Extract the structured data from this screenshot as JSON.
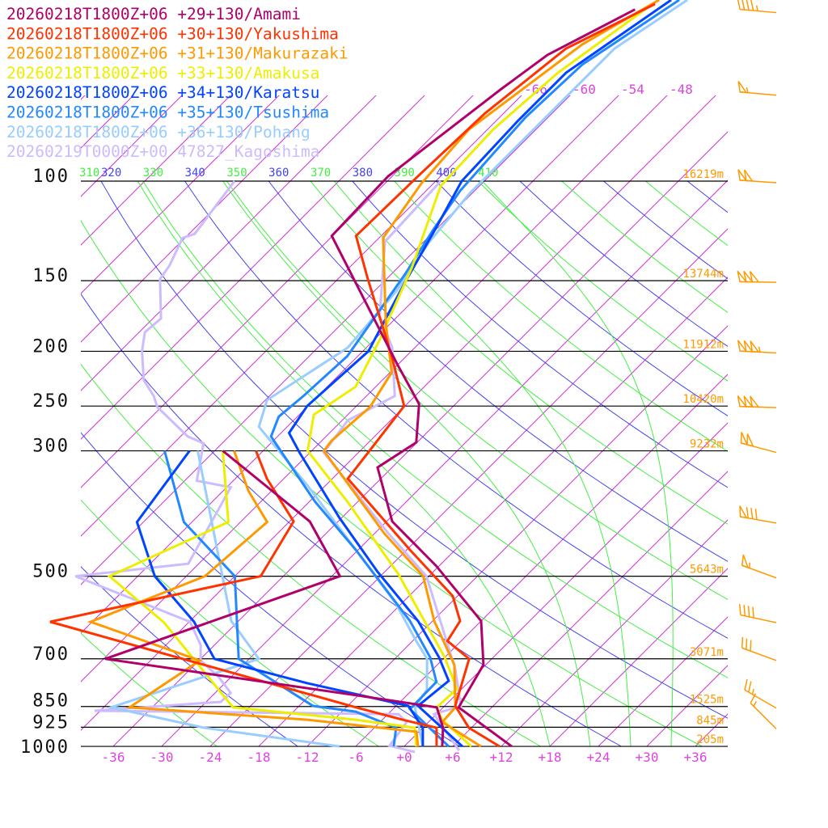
{
  "chart_data": {
    "type": "line",
    "subtype": "skew-t log-p",
    "xlabel": "Temperature (°C)",
    "ylabel": "Pressure (hPa)",
    "pressure_levels": [
      100,
      150,
      200,
      250,
      300,
      500,
      700,
      850,
      925,
      1000
    ],
    "pressure_labels": [
      "100",
      "150",
      "200",
      "250",
      "300",
      "500",
      "700",
      "850",
      "925",
      "1000"
    ],
    "height_labels": [
      "16219m",
      "13744m",
      "11912m",
      "10420m",
      "9232m",
      "5643m",
      "3071m",
      "1525m",
      "845m",
      "205m"
    ],
    "temperature_ticks": [
      -36,
      -30,
      -24,
      -18,
      -12,
      -6,
      0,
      6,
      12,
      18,
      24,
      30,
      36
    ],
    "temperature_tick_labels": [
      "-36",
      "-30",
      "-24",
      "-18",
      "-12",
      "-6",
      "+0",
      "+6",
      "+12",
      "+18",
      "+24",
      "+30",
      "+36"
    ],
    "top_isotherm_ticks": [
      -66,
      -60,
      -54,
      -48
    ],
    "top_isotherm_labels": [
      "-66",
      "-60",
      "-54",
      "-48"
    ],
    "theta_ticks": [
      310,
      320,
      330,
      340,
      350,
      360,
      370,
      380,
      390,
      400,
      410
    ],
    "theta_labels": [
      "310",
      "320",
      "330",
      "340",
      "350",
      "360",
      "370",
      "380",
      "390",
      "400",
      "410"
    ],
    "xlim_at_1000hPa": [
      -40,
      40
    ],
    "ylim": [
      1000,
      48
    ],
    "colors": {
      "isotherm": "#cc33cc",
      "dry_adiabat_a": "#4444ee",
      "dry_adiabat_b": "#44ee44",
      "moist_adiabat": "#44ee44",
      "isobar": "#000000",
      "height_label": "#ff9900",
      "tick_label": "#dd44dd",
      "wind_barb": "#ff9900"
    },
    "moist_adiabat_start_T_1000hPa": [
      18,
      23,
      28,
      33
    ],
    "series": [
      {
        "name": "Amami",
        "label": "20260218T1800Z+06 +29+130/Amami",
        "color": "#b0006a",
        "temperature": [
          [
            1000,
            13.3
          ],
          [
            853,
            1.9
          ],
          [
            717,
            -0.3
          ],
          [
            600,
            -6.0
          ],
          [
            480,
            -18.3
          ],
          [
            400,
            -29.3
          ],
          [
            321,
            -37.8
          ],
          [
            290,
            -36.1
          ],
          [
            248,
            -40.5
          ],
          [
            210,
            -48.3
          ],
          [
            125,
            -72.1
          ],
          [
            98,
            -72.5
          ],
          [
            68.7,
            -69.3
          ],
          [
            59.8,
            -67.8
          ],
          [
            49.7,
            -62.6
          ]
        ],
        "dewpoint": [
          [
            1000,
            4.7
          ],
          [
            927,
            2.5
          ],
          [
            853,
            -0.8
          ],
          [
            812,
            -12.3
          ],
          [
            700,
            -47.8
          ],
          [
            500,
            -29.0
          ],
          [
            400,
            -39.5
          ],
          [
            300,
            -59.0
          ]
        ]
      },
      {
        "name": "Yakushima",
        "label": "20260218T1800Z+06 +30+130/Yakushima",
        "color": "#ff3300",
        "temperature": [
          [
            1000,
            11.8
          ],
          [
            927,
            5.7
          ],
          [
            848,
            1.3
          ],
          [
            700,
            -2.8
          ],
          [
            651,
            -7.7
          ],
          [
            600,
            -8.6
          ],
          [
            542,
            -12.6
          ],
          [
            449,
            -23.6
          ],
          [
            336,
            -40.1
          ],
          [
            302,
            -40.8
          ],
          [
            250,
            -42.1
          ],
          [
            204,
            -49.8
          ],
          [
            149,
            -62.3
          ],
          [
            125,
            -69.1
          ],
          [
            97,
            -68.8
          ],
          [
            75.8,
            -68.3
          ],
          [
            58.3,
            -66.3
          ],
          [
            48.6,
            -60.8
          ]
        ],
        "dewpoint": [
          [
            1000,
            4.0
          ],
          [
            927,
            1.7
          ],
          [
            897,
            -3.5
          ],
          [
            853,
            -10.8
          ],
          [
            602,
            -59.2
          ],
          [
            500,
            -38.8
          ],
          [
            400,
            -41.5
          ],
          [
            336,
            -50.1
          ],
          [
            300,
            -54.9
          ]
        ]
      },
      {
        "name": "Makurazaki",
        "label": "20260218T1800Z+06 +31+130/Makurazaki",
        "color": "#ff9900",
        "temperature": [
          [
            1000,
            9.5
          ],
          [
            906,
            1.7
          ],
          [
            853,
            1.5
          ],
          [
            717,
            -3.9
          ],
          [
            600,
            -11.8
          ],
          [
            500,
            -18.7
          ],
          [
            420,
            -28.8
          ],
          [
            300,
            -46.5
          ],
          [
            288,
            -46.8
          ],
          [
            251,
            -46.2
          ],
          [
            218,
            -47.8
          ],
          [
            179,
            -54.5
          ],
          [
            126,
            -65.5
          ],
          [
            101,
            -67.5
          ],
          [
            81,
            -68.3
          ],
          [
            69.8,
            -66.8
          ],
          [
            57.3,
            -64.8
          ],
          [
            47.8,
            -60.8
          ]
        ],
        "dewpoint": [
          [
            1000,
            1.7
          ],
          [
            942,
            -0.3
          ],
          [
            897,
            -15.3
          ],
          [
            853,
            -38.8
          ],
          [
            705,
            -35.9
          ],
          [
            602,
            -54.2
          ],
          [
            500,
            -45.7
          ],
          [
            401,
            -44.7
          ],
          [
            353,
            -50.9
          ],
          [
            300,
            -57.6
          ]
        ]
      },
      {
        "name": "Amakusa",
        "label": "20260218T1800Z+06 +33+130/Amakusa",
        "color": "#eeee00",
        "temperature": [
          [
            1000,
            8.3
          ],
          [
            897,
            1.4
          ],
          [
            853,
            -0.8
          ],
          [
            791,
            -0.6
          ],
          [
            696,
            -6.0
          ],
          [
            496,
            -22.0
          ],
          [
            369,
            -37.3
          ],
          [
            300,
            -48.5
          ],
          [
            259,
            -52.2
          ],
          [
            231,
            -50.5
          ],
          [
            191,
            -53.3
          ],
          [
            142,
            -58.3
          ],
          [
            102,
            -64.8
          ],
          [
            81,
            -65.3
          ],
          [
            64.3,
            -64.3
          ],
          [
            49.4,
            -61.3
          ]
        ],
        "dewpoint": [
          [
            1000,
            1.5
          ],
          [
            927,
            -1.0
          ],
          [
            897,
            -9.3
          ],
          [
            853,
            -26.0
          ],
          [
            604,
            -45.0
          ],
          [
            500,
            -57.5
          ],
          [
            401,
            -49.5
          ],
          [
            300,
            -59.0
          ]
        ]
      },
      {
        "name": "Karatsu",
        "label": "20260218T1800Z+06 +34+130/Karatsu",
        "color": "#0044ff",
        "temperature": [
          [
            1000,
            7.2
          ],
          [
            848,
            -3.3
          ],
          [
            766,
            -2.6
          ],
          [
            696,
            -6.7
          ],
          [
            600,
            -13.8
          ],
          [
            491,
            -24.9
          ],
          [
            394,
            -36.3
          ],
          [
            302,
            -49.3
          ],
          [
            279,
            -53.0
          ],
          [
            250,
            -54.1
          ],
          [
            200,
            -53.3
          ],
          [
            151,
            -57.3
          ],
          [
            120,
            -60.3
          ],
          [
            100,
            -62.8
          ],
          [
            78.4,
            -63.3
          ],
          [
            64.3,
            -63.3
          ],
          [
            47.8,
            -59.3
          ]
        ],
        "dewpoint": [
          [
            1000,
            2.3
          ],
          [
            927,
            0.0
          ],
          [
            848,
            -4.5
          ],
          [
            773,
            -19.8
          ],
          [
            700,
            -34.3
          ],
          [
            602,
            -41.4
          ],
          [
            500,
            -51.9
          ],
          [
            401,
            -60.8
          ],
          [
            300,
            -63.1
          ]
        ]
      },
      {
        "name": "Tsushima",
        "label": "20260218T1800Z+06 +35+130/Tsushima",
        "color": "#2288ff",
        "temperature": [
          [
            1000,
            5.5
          ],
          [
            859,
            -3.9
          ],
          [
            769,
            -4.0
          ],
          [
            696,
            -7.8
          ],
          [
            600,
            -14.8
          ],
          [
            449,
            -30.3
          ],
          [
            369,
            -41.3
          ],
          [
            283,
            -54.8
          ],
          [
            261,
            -56.3
          ],
          [
            240,
            -55.8
          ],
          [
            204,
            -55.3
          ],
          [
            146,
            -58.3
          ],
          [
            122,
            -60.3
          ],
          [
            104,
            -61.8
          ],
          [
            77.1,
            -62.8
          ],
          [
            62.2,
            -62.3
          ],
          [
            47.8,
            -58.3
          ]
        ],
        "dewpoint": [
          [
            1000,
            -1.3
          ],
          [
            927,
            -3.3
          ],
          [
            868,
            -10.3
          ],
          [
            848,
            -16.3
          ],
          [
            700,
            -31.3
          ],
          [
            500,
            -42.0
          ],
          [
            401,
            -55.0
          ],
          [
            300,
            -66.2
          ]
        ]
      },
      {
        "name": "Pohang",
        "label": "20260218T1800Z+06 +36+130/Pohang",
        "color": "#99ccff",
        "temperature": [
          [
            1000,
            2.3
          ],
          [
            853,
            -3.5
          ],
          [
            794,
            -4.2
          ],
          [
            700,
            -8.0
          ],
          [
            645,
            -12.0
          ],
          [
            560,
            -18.6
          ],
          [
            449,
            -30.3
          ],
          [
            345,
            -44.3
          ],
          [
            272,
            -57.5
          ],
          [
            244,
            -59.8
          ],
          [
            197,
            -56.3
          ],
          [
            156,
            -57.3
          ],
          [
            128,
            -59.3
          ],
          [
            105,
            -60.3
          ],
          [
            83.7,
            -60.3
          ],
          [
            58.3,
            -60.3
          ],
          [
            47.8,
            -57.3
          ]
        ],
        "dewpoint": [
          [
            1000,
            -8.0
          ],
          [
            927,
            -27.0
          ],
          [
            853,
            -41.1
          ],
          [
            700,
            -28.8
          ],
          [
            600,
            -36.9
          ],
          [
            300,
            -62.1
          ]
        ]
      },
      {
        "name": "Kagoshima",
        "label": "20260219T0000Z+00 47827_Kagoshima",
        "color": "#ccbbff",
        "temperature": [
          [
            1017,
            7.3
          ],
          [
            877,
            -0.3
          ],
          [
            848,
            2.0
          ],
          [
            729,
            -3.3
          ],
          [
            500,
            -18.3
          ],
          [
            420,
            -28.3
          ],
          [
            302,
            -46.3
          ],
          [
            265,
            -47.3
          ],
          [
            240,
            -44.5
          ],
          [
            197,
            -50.8
          ],
          [
            173,
            -56.3
          ],
          [
            128,
            -64.8
          ],
          [
            100,
            -65.4
          ]
        ],
        "dewpoint": [
          [
            1023,
            2.0
          ],
          [
            997,
            -1.9
          ],
          [
            906,
            -2.7
          ],
          [
            877,
            -4.7
          ],
          [
            865,
            -42.7
          ],
          [
            834,
            -28.2
          ],
          [
            804,
            -28.1
          ],
          [
            753,
            -31.6
          ],
          [
            705,
            -35.8
          ],
          [
            662,
            -37.7
          ],
          [
            602,
            -41.9
          ],
          [
            500,
            -61.7
          ],
          [
            475,
            -49.3
          ],
          [
            348,
            -53.5
          ],
          [
            339,
            -58.5
          ],
          [
            291,
            -62.3
          ],
          [
            283,
            -65.1
          ],
          [
            251,
            -72.5
          ],
          [
            240,
            -74.3
          ],
          [
            225,
            -77.5
          ],
          [
            200,
            -81.3
          ],
          [
            185,
            -83.3
          ],
          [
            175,
            -83.0
          ],
          [
            149,
            -88.0
          ],
          [
            141,
            -88.5
          ],
          [
            126,
            -90.3
          ],
          [
            124,
            -89.3
          ],
          [
            100,
            -90.9
          ]
        ]
      }
    ],
    "wind_barbs": [
      {
        "p": 50,
        "dir": 275,
        "speed_kt": 45
      },
      {
        "p": 70,
        "dir": 275,
        "speed_kt": 55
      },
      {
        "p": 100,
        "dir": 274,
        "speed_kt": 100
      },
      {
        "p": 150,
        "dir": 271,
        "speed_kt": 150
      },
      {
        "p": 200,
        "dir": 273,
        "speed_kt": 155
      },
      {
        "p": 250,
        "dir": 272,
        "speed_kt": 150
      },
      {
        "p": 300,
        "dir": 285,
        "speed_kt": 100
      },
      {
        "p": 400,
        "dir": 280,
        "speed_kt": 80
      },
      {
        "p": 500,
        "dir": 290,
        "speed_kt": 55
      },
      {
        "p": 600,
        "dir": 282,
        "speed_kt": 40
      },
      {
        "p": 700,
        "dir": 290,
        "speed_kt": 30
      },
      {
        "p": 850,
        "dir": 300,
        "speed_kt": 25
      },
      {
        "p": 925,
        "dir": 315,
        "speed_kt": 15
      }
    ]
  }
}
